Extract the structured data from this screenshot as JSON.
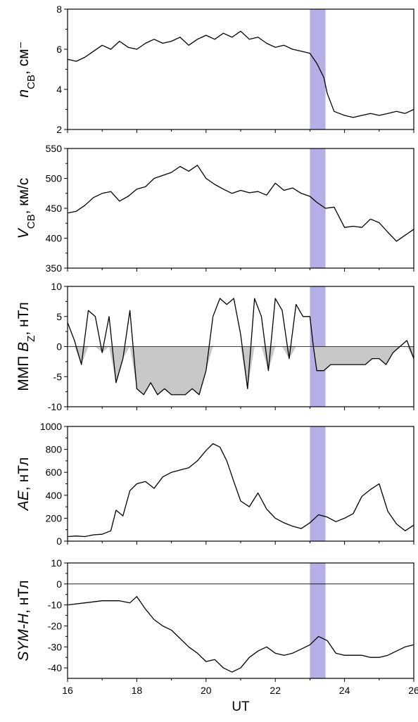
{
  "colors": {
    "line": "#000000",
    "highlight": "#b4b0e6",
    "fill": "#c8c8c8"
  },
  "x_axis": {
    "label": "UT",
    "range": [
      16,
      26
    ],
    "ticks": [
      "16",
      "18",
      "20",
      "22",
      "24",
      "26"
    ]
  },
  "highlight_interval": [
    23.0,
    23.45
  ],
  "chart_data": [
    {
      "type": "line",
      "panel": "n",
      "ylabel": {
        "var": "n",
        "sub": "СВ",
        "unit": ", см⁻"
      },
      "ylim": [
        2,
        8
      ],
      "yticks": [
        "2",
        "4",
        "6",
        "8"
      ],
      "grid": false,
      "x": [
        16,
        16.25,
        16.5,
        16.75,
        17,
        17.25,
        17.5,
        17.75,
        18,
        18.25,
        18.5,
        18.75,
        19,
        19.25,
        19.5,
        19.75,
        20,
        20.25,
        20.5,
        20.75,
        21,
        21.25,
        21.5,
        21.75,
        22,
        22.25,
        22.5,
        22.75,
        23,
        23.2,
        23.4,
        23.5,
        23.7,
        24,
        24.25,
        24.5,
        24.75,
        25,
        25.25,
        25.5,
        25.75,
        26
      ],
      "y": [
        5.5,
        5.4,
        5.6,
        5.9,
        6.2,
        6.0,
        6.4,
        6.1,
        6.0,
        6.3,
        6.5,
        6.3,
        6.4,
        6.6,
        6.2,
        6.5,
        6.7,
        6.5,
        6.8,
        6.6,
        6.9,
        6.5,
        6.6,
        6.3,
        6.1,
        6.2,
        6.0,
        5.9,
        5.8,
        5.3,
        4.6,
        3.8,
        2.9,
        2.7,
        2.6,
        2.7,
        2.8,
        2.7,
        2.8,
        2.9,
        2.8,
        3.0
      ]
    },
    {
      "type": "line",
      "panel": "V",
      "ylabel": {
        "var": "V",
        "sub": "СВ",
        "unit": ", км/с"
      },
      "ylim": [
        350,
        550
      ],
      "yticks": [
        "350",
        "400",
        "450",
        "500",
        "550"
      ],
      "grid": false,
      "x": [
        16,
        16.25,
        16.5,
        16.75,
        17,
        17.25,
        17.5,
        17.75,
        18,
        18.25,
        18.5,
        18.75,
        19,
        19.25,
        19.5,
        19.75,
        20,
        20.25,
        20.5,
        20.75,
        21,
        21.25,
        21.5,
        21.75,
        22,
        22.25,
        22.5,
        22.75,
        23,
        23.2,
        23.45,
        23.7,
        24,
        24.25,
        24.5,
        24.75,
        25,
        25.25,
        25.5,
        25.75,
        26
      ],
      "y": [
        442,
        445,
        455,
        468,
        475,
        478,
        462,
        470,
        482,
        486,
        500,
        505,
        510,
        520,
        512,
        522,
        500,
        490,
        482,
        475,
        480,
        476,
        478,
        472,
        492,
        480,
        484,
        475,
        470,
        460,
        450,
        452,
        418,
        420,
        418,
        432,
        426,
        410,
        395,
        405,
        415
      ]
    },
    {
      "type": "area",
      "panel": "Bz",
      "ylabel": {
        "var": "B",
        "sub": "Z",
        "prefix": "ММП ",
        "unit": ", нТл"
      },
      "ylim": [
        -10,
        10
      ],
      "yticks": [
        "-10",
        "-5",
        "0",
        "5",
        "10"
      ],
      "grid": false,
      "baseline": 0,
      "x": [
        16,
        16.2,
        16.4,
        16.6,
        16.8,
        17,
        17.2,
        17.4,
        17.6,
        17.8,
        18,
        18.2,
        18.4,
        18.6,
        18.8,
        19,
        19.2,
        19.4,
        19.6,
        19.8,
        20,
        20.2,
        20.4,
        20.6,
        20.8,
        21,
        21.2,
        21.4,
        21.6,
        21.8,
        22,
        22.2,
        22.4,
        22.6,
        22.8,
        23,
        23.1,
        23.2,
        23.4,
        23.6,
        23.8,
        24,
        24.2,
        24.4,
        24.6,
        24.8,
        25,
        25.2,
        25.4,
        25.6,
        25.8,
        26
      ],
      "y": [
        4,
        1,
        -3,
        6,
        5,
        -1,
        5,
        -6,
        -2,
        6,
        -7,
        -8,
        -6,
        -8,
        -7,
        -8,
        -8,
        -8,
        -7,
        -8,
        -4,
        5,
        8,
        7,
        8,
        2,
        -7,
        8,
        5,
        -4,
        8,
        6,
        -2,
        7,
        5,
        5,
        0,
        -4,
        -4,
        -3,
        -3,
        -3,
        -3,
        -3,
        -3,
        -2,
        -2,
        -3,
        -1,
        0,
        1,
        -2
      ]
    },
    {
      "type": "line",
      "panel": "AE",
      "ylabel": {
        "var": "AE",
        "sub": "",
        "unit": ", нТл"
      },
      "ylim": [
        0,
        1000
      ],
      "yticks": [
        "0",
        "200",
        "400",
        "600",
        "800",
        "1000"
      ],
      "grid": false,
      "x": [
        16,
        16.25,
        16.5,
        16.75,
        17,
        17.25,
        17.4,
        17.6,
        17.8,
        18,
        18.25,
        18.5,
        18.75,
        19,
        19.25,
        19.5,
        19.75,
        20,
        20.2,
        20.4,
        20.6,
        20.8,
        21,
        21.25,
        21.5,
        21.75,
        22,
        22.25,
        22.5,
        22.75,
        23,
        23.25,
        23.5,
        23.75,
        24,
        24.25,
        24.5,
        24.75,
        25,
        25.25,
        25.5,
        25.75,
        26
      ],
      "y": [
        40,
        45,
        40,
        55,
        60,
        90,
        270,
        220,
        440,
        500,
        520,
        460,
        560,
        600,
        620,
        640,
        700,
        790,
        850,
        820,
        700,
        520,
        350,
        300,
        420,
        280,
        200,
        160,
        130,
        110,
        160,
        230,
        210,
        170,
        200,
        240,
        390,
        450,
        500,
        260,
        150,
        90,
        140
      ]
    },
    {
      "type": "line",
      "panel": "SYM-H",
      "ylabel": {
        "var": "SYM-H",
        "sub": "",
        "unit": ", нТл"
      },
      "ylim": [
        -45,
        10
      ],
      "yticks": [
        "-40",
        "-30",
        "-20",
        "-10",
        "0",
        "10"
      ],
      "grid": false,
      "baseline": 0,
      "x": [
        16,
        16.5,
        17,
        17.5,
        17.8,
        18,
        18.25,
        18.5,
        18.75,
        19,
        19.25,
        19.5,
        19.75,
        20,
        20.25,
        20.5,
        20.75,
        21,
        21.25,
        21.5,
        21.75,
        22,
        22.25,
        22.5,
        22.75,
        23,
        23.25,
        23.5,
        23.75,
        24,
        24.25,
        24.5,
        24.75,
        25,
        25.25,
        25.5,
        25.75,
        26
      ],
      "y": [
        -10,
        -9,
        -8,
        -8,
        -9,
        -6,
        -12,
        -17,
        -20,
        -22,
        -26,
        -30,
        -33,
        -37,
        -36,
        -40,
        -42,
        -40,
        -35,
        -32,
        -30,
        -33,
        -34,
        -33,
        -31,
        -29,
        -25,
        -27,
        -33,
        -34,
        -34,
        -34,
        -35,
        -35,
        -34,
        -32,
        -30,
        -29
      ]
    }
  ]
}
